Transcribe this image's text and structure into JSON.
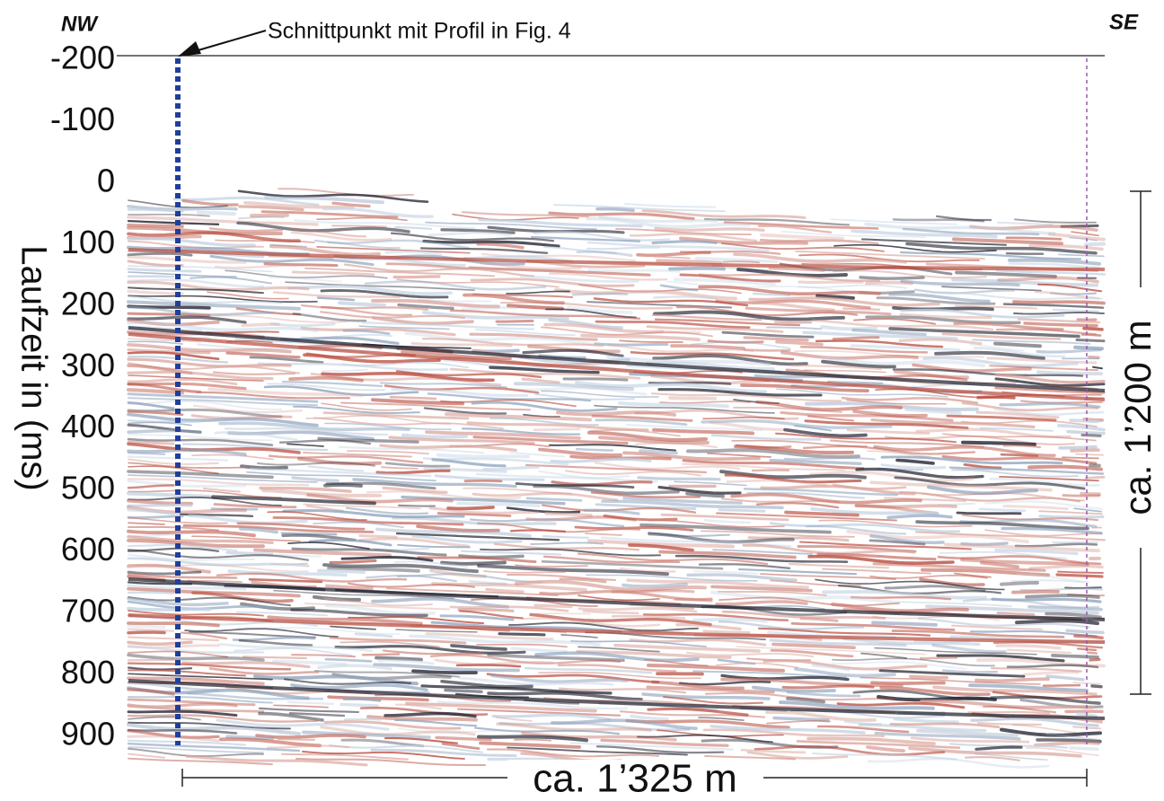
{
  "chart_data": {
    "type": "seismic",
    "label_left": "NW",
    "label_right": "SE",
    "annotation": "Schnittpunkt mit Profil in Fig. 4",
    "ylabel": "Laufzeit in (ms)",
    "ylim": [
      -200,
      900
    ],
    "yticks": [
      -200,
      -100,
      0,
      100,
      200,
      300,
      400,
      500,
      600,
      700,
      800,
      900
    ],
    "scale_vertical": "ca. 1’200 m",
    "scale_horizontal": "ca. 1’325 m"
  }
}
